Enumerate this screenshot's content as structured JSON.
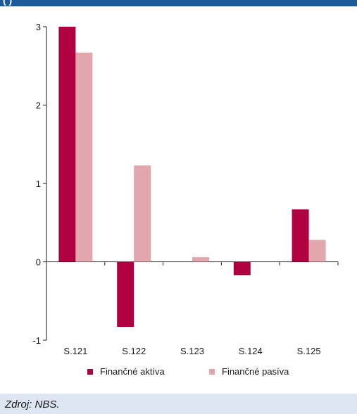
{
  "header": {
    "title_fragment": "(          )"
  },
  "chart_data": {
    "type": "bar",
    "categories": [
      "S.121",
      "S.122",
      "S.123",
      "S.124",
      "S.125"
    ],
    "series": [
      {
        "name": "Finančné aktíva",
        "values": [
          3.0,
          -0.83,
          0.0,
          -0.17,
          0.67
        ],
        "color": "#b0003f"
      },
      {
        "name": "Finančné pasíva",
        "values": [
          2.67,
          1.23,
          0.06,
          0.0,
          0.28
        ],
        "color": "#e2a7ac"
      }
    ],
    "ylim": [
      -1,
      3
    ],
    "yticks": [
      "-1",
      "0",
      "1",
      "2",
      "3"
    ],
    "grid": false,
    "legend_position": "bottom"
  },
  "source": "Zdroj: NBS."
}
